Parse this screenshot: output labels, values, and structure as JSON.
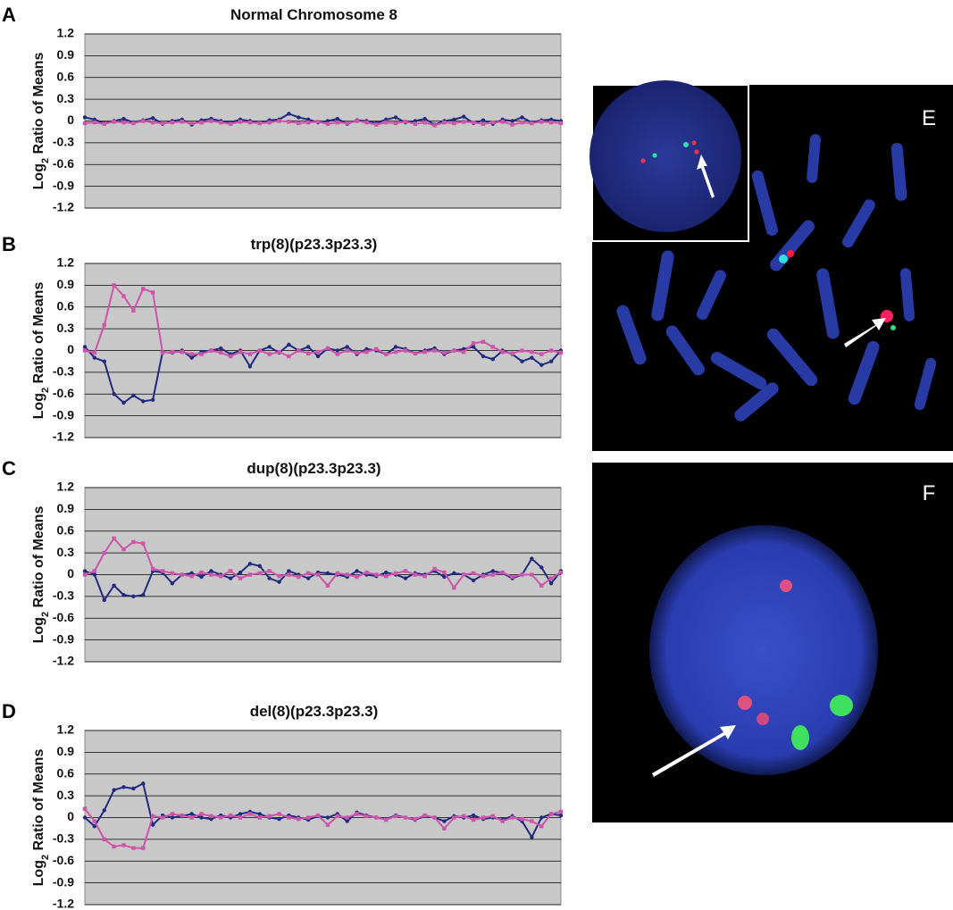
{
  "chart_data": [
    {
      "type": "line",
      "panel": "A",
      "title": "Normal Chromosome 8",
      "ylabel": [
        "Log",
        "2",
        " Ratio of Means"
      ],
      "ylim": [
        -1.2,
        1.2
      ],
      "yticks": [
        1.2,
        0.9,
        0.6,
        0.3,
        0,
        -0.3,
        -0.6,
        -0.9,
        -1.2
      ],
      "grid": true,
      "series": [
        {
          "color": "#1f2a80",
          "values": [
            0.05,
            0.02,
            -0.03,
            0.0,
            0.03,
            -0.02,
            0.01,
            0.04,
            -0.04,
            0.0,
            0.02,
            -0.05,
            0.01,
            0.03,
            0.0,
            -0.02,
            0.02,
            0.0,
            -0.03,
            0.01,
            0.02,
            0.1,
            0.05,
            0.02,
            -0.02,
            0.0,
            0.03,
            -0.04,
            0.01,
            0.0,
            -0.03,
            0.02,
            0.05,
            -0.02,
            0.0,
            0.03,
            -0.05,
            0.0,
            0.02,
            0.06,
            -0.03,
            0.01,
            -0.04,
            0.02,
            0.0,
            0.05,
            -0.02,
            0.01,
            0.02,
            0.0
          ]
        },
        {
          "color": "#cc55aa",
          "values": [
            -0.03,
            -0.02,
            -0.04,
            -0.01,
            -0.02,
            -0.03,
            0.0,
            -0.02,
            -0.03,
            -0.02,
            -0.01,
            -0.03,
            -0.02,
            0.0,
            -0.02,
            -0.04,
            -0.01,
            -0.02,
            -0.03,
            -0.02,
            0.0,
            -0.01,
            -0.03,
            -0.02,
            -0.01,
            -0.04,
            -0.02,
            -0.03,
            0.0,
            -0.02,
            -0.05,
            -0.02,
            -0.03,
            -0.01,
            -0.04,
            -0.02,
            -0.06,
            -0.02,
            -0.03,
            -0.01,
            -0.02,
            -0.04,
            -0.02,
            -0.01,
            -0.05,
            -0.02,
            -0.03,
            -0.01,
            -0.02,
            -0.03
          ]
        }
      ]
    },
    {
      "type": "line",
      "panel": "B",
      "title": "trp(8)(p23.3p23.3)",
      "ylabel": [
        "Log",
        "2",
        " Ratio of Means"
      ],
      "ylim": [
        -1.2,
        1.2
      ],
      "yticks": [
        1.2,
        0.9,
        0.6,
        0.3,
        0,
        -0.3,
        -0.6,
        -0.9,
        -1.2
      ],
      "grid": true,
      "series": [
        {
          "color": "#1f2a80",
          "values": [
            0.05,
            -0.1,
            -0.15,
            -0.6,
            -0.72,
            -0.62,
            -0.7,
            -0.68,
            -0.02,
            -0.03,
            0.0,
            -0.1,
            -0.02,
            0.0,
            0.03,
            -0.05,
            0.0,
            -0.22,
            0.0,
            0.05,
            -0.03,
            0.08,
            0.0,
            0.05,
            -0.08,
            0.03,
            0.0,
            0.05,
            -0.05,
            0.02,
            0.0,
            -0.05,
            0.05,
            0.02,
            -0.04,
            0.0,
            0.03,
            -0.05,
            0.0,
            0.02,
            0.05,
            -0.08,
            -0.12,
            0.0,
            -0.05,
            -0.15,
            -0.1,
            -0.2,
            -0.15,
            0.0
          ]
        },
        {
          "color": "#cc55aa",
          "values": [
            0.0,
            -0.03,
            0.35,
            0.9,
            0.75,
            0.55,
            0.85,
            0.8,
            -0.03,
            -0.02,
            -0.02,
            -0.05,
            -0.05,
            0.0,
            -0.03,
            -0.08,
            -0.02,
            -0.05,
            0.0,
            -0.05,
            -0.02,
            -0.08,
            0.0,
            -0.04,
            -0.02,
            0.03,
            -0.05,
            0.0,
            -0.03,
            -0.02,
            0.02,
            -0.05,
            -0.02,
            0.0,
            -0.04,
            -0.02,
            0.0,
            -0.03,
            0.0,
            -0.02,
            0.1,
            0.12,
            0.05,
            -0.02,
            -0.04,
            0.0,
            -0.02,
            -0.05,
            0.0,
            -0.03
          ]
        }
      ]
    },
    {
      "type": "line",
      "panel": "C",
      "title": "dup(8)(p23.3p23.3)",
      "ylabel": [
        "Log",
        "2",
        " Ratio of Means"
      ],
      "ylim": [
        -1.2,
        1.2
      ],
      "yticks": [
        1.2,
        0.9,
        0.6,
        0.3,
        0,
        -0.3,
        -0.6,
        -0.9,
        -1.2
      ],
      "grid": true,
      "series": [
        {
          "color": "#1f2a80",
          "values": [
            0.05,
            0.0,
            -0.35,
            -0.15,
            -0.28,
            -0.3,
            -0.28,
            0.05,
            0.03,
            -0.12,
            0.0,
            0.02,
            -0.03,
            0.05,
            0.0,
            -0.05,
            0.03,
            0.15,
            0.12,
            -0.05,
            -0.1,
            0.05,
            0.0,
            -0.05,
            0.03,
            0.02,
            0.0,
            -0.03,
            0.05,
            0.0,
            -0.02,
            0.03,
            0.0,
            -0.05,
            0.02,
            0.0,
            0.05,
            -0.03,
            0.02,
            0.0,
            -0.08,
            0.0,
            0.05,
            0.02,
            -0.05,
            0.0,
            0.22,
            0.1,
            -0.12,
            0.05
          ]
        },
        {
          "color": "#cc55aa",
          "values": [
            0.0,
            0.05,
            0.3,
            0.5,
            0.35,
            0.45,
            0.43,
            0.08,
            0.05,
            0.02,
            0.0,
            -0.02,
            0.03,
            0.0,
            -0.02,
            0.05,
            -0.05,
            0.0,
            0.02,
            0.05,
            -0.02,
            0.0,
            -0.03,
            0.02,
            0.0,
            -0.15,
            0.02,
            0.0,
            -0.03,
            0.03,
            0.0,
            -0.02,
            0.02,
            0.05,
            0.0,
            -0.02,
            0.08,
            0.03,
            -0.18,
            0.0,
            0.02,
            -0.02,
            0.0,
            0.03,
            -0.03,
            0.0,
            0.0,
            -0.15,
            -0.05,
            0.03
          ]
        }
      ]
    },
    {
      "type": "line",
      "panel": "D",
      "title": "del(8)(p23.3p23.3)",
      "ylabel": [
        "Log",
        "2",
        " Ratio of Means"
      ],
      "ylim": [
        -1.2,
        1.2
      ],
      "yticks": [
        1.2,
        0.9,
        0.6,
        0.3,
        0,
        -0.3,
        -0.6,
        -0.9,
        -1.2
      ],
      "grid": true,
      "series": [
        {
          "color": "#1f2a80",
          "values": [
            0.0,
            -0.12,
            0.1,
            0.38,
            0.42,
            0.4,
            0.47,
            -0.1,
            0.03,
            0.0,
            0.02,
            0.05,
            0.0,
            -0.02,
            0.03,
            0.0,
            0.05,
            0.08,
            0.05,
            0.0,
            -0.02,
            0.03,
            0.0,
            -0.03,
            0.02,
            0.0,
            0.05,
            -0.05,
            0.07,
            0.03,
            0.0,
            -0.02,
            0.03,
            0.0,
            -0.03,
            0.02,
            0.0,
            -0.05,
            0.02,
            0.0,
            0.03,
            -0.02,
            0.0,
            -0.03,
            0.02,
            -0.05,
            -0.27,
            0.0,
            0.05,
            0.03
          ]
        },
        {
          "color": "#cc55aa",
          "values": [
            0.12,
            -0.05,
            -0.3,
            -0.4,
            -0.38,
            -0.42,
            -0.42,
            0.02,
            0.0,
            0.05,
            0.03,
            0.0,
            0.05,
            0.02,
            0.0,
            0.03,
            0.0,
            0.05,
            0.0,
            0.02,
            0.05,
            0.0,
            -0.02,
            0.0,
            0.03,
            -0.1,
            0.02,
            0.0,
            0.05,
            0.02,
            0.0,
            -0.03,
            0.02,
            0.0,
            -0.02,
            0.03,
            0.0,
            -0.15,
            0.0,
            0.02,
            -0.03,
            0.0,
            0.02,
            -0.05,
            0.0,
            -0.02,
            -0.05,
            -0.12,
            0.05,
            0.08
          ]
        }
      ]
    }
  ],
  "images": [
    {
      "label": "E"
    },
    {
      "label": "F"
    }
  ]
}
